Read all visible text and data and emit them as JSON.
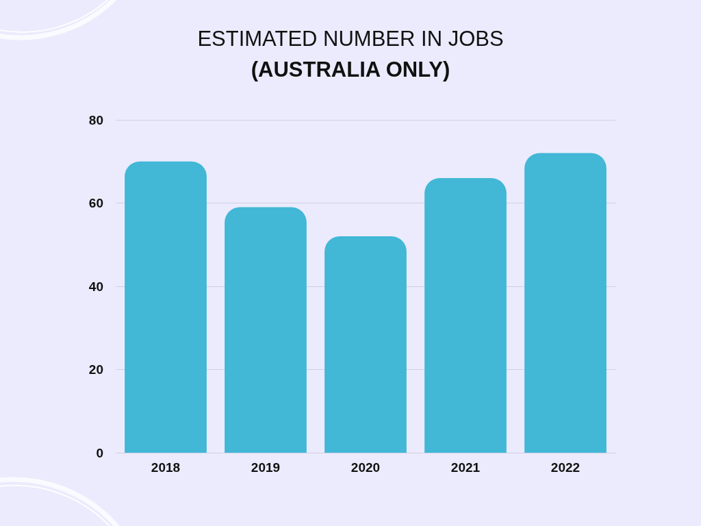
{
  "chart_data": {
    "type": "bar",
    "title": "ESTIMATED NUMBER IN JOBS",
    "subtitle": "(AUSTRALIA ONLY)",
    "categories": [
      "2018",
      "2019",
      "2020",
      "2021",
      "2022"
    ],
    "values": [
      70,
      59,
      52,
      66,
      72
    ],
    "color": "#42b7d6",
    "ylim": [
      0,
      80
    ],
    "yticks": [
      0,
      20,
      40,
      60,
      80
    ],
    "grid": "y"
  }
}
